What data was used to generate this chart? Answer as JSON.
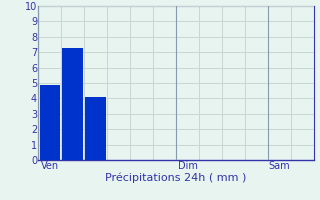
{
  "bars": [
    {
      "x": 0,
      "height": 4.9,
      "color": "#0033cc"
    },
    {
      "x": 1,
      "height": 7.3,
      "color": "#0033cc"
    },
    {
      "x": 2,
      "height": 4.1,
      "color": "#0033cc"
    }
  ],
  "xlabel": "Précipitations 24h ( mm )",
  "ylim": [
    0,
    10
  ],
  "yticks": [
    0,
    1,
    2,
    3,
    4,
    5,
    6,
    7,
    8,
    9,
    10
  ],
  "background_color": "#e8f4f0",
  "grid_color": "#c8d8d0",
  "bar_width": 0.9,
  "text_color": "#3333aa",
  "xlabel_fontsize": 8,
  "tick_fontsize": 7,
  "xlim": [
    -0.5,
    11.5
  ],
  "ven_x": 0,
  "dim_x": 6,
  "sam_x": 10,
  "vline_color": "#8899aa",
  "spine_color": "#3333aa"
}
